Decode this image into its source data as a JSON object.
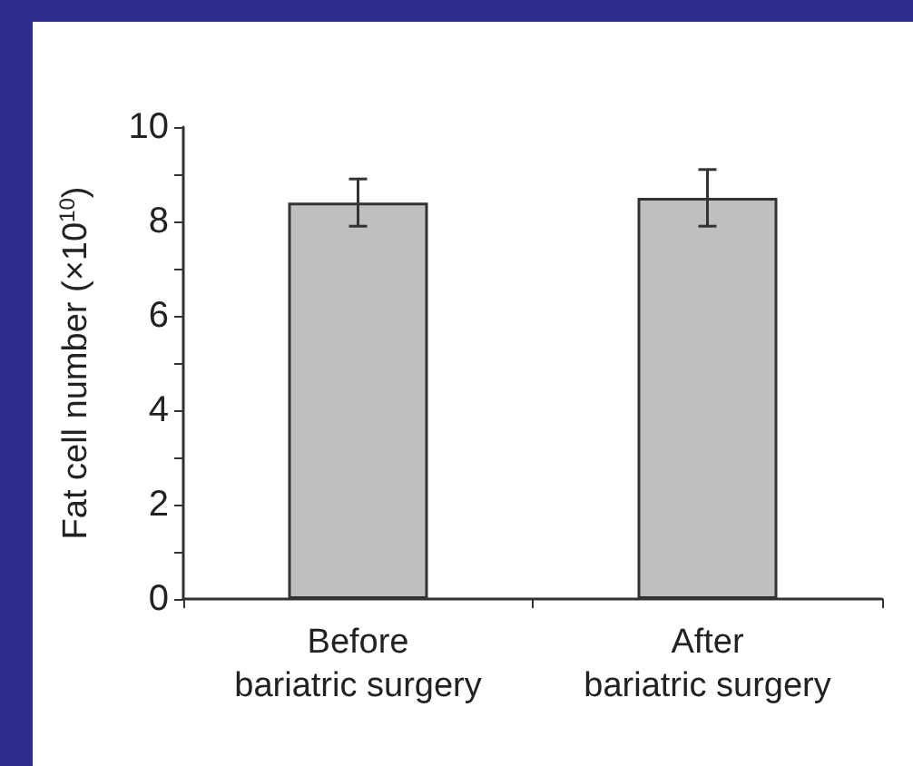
{
  "chart_data": {
    "type": "bar",
    "ylabel": "Fat cell number (×10$^{10}$)",
    "categories": [
      "Before\nbariatric surgery",
      "After\nbariatric surgery"
    ],
    "series": [
      {
        "color": "#bfbfbf",
        "values": [
          8.4,
          8.5
        ],
        "errors": [
          [
            7.9,
            8.9
          ],
          [
            7.9,
            9.1
          ]
        ]
      }
    ],
    "ylim": [
      0,
      10
    ],
    "yticks": [
      0,
      {
        "value": 1,
        "label": null
      },
      2,
      {
        "value": 3,
        "label": null
      },
      4,
      {
        "value": 5,
        "label": null
      },
      6,
      {
        "value": 7,
        "label": null
      },
      8,
      {
        "value": 9,
        "label": null
      },
      10
    ],
    "grid": false
  }
}
